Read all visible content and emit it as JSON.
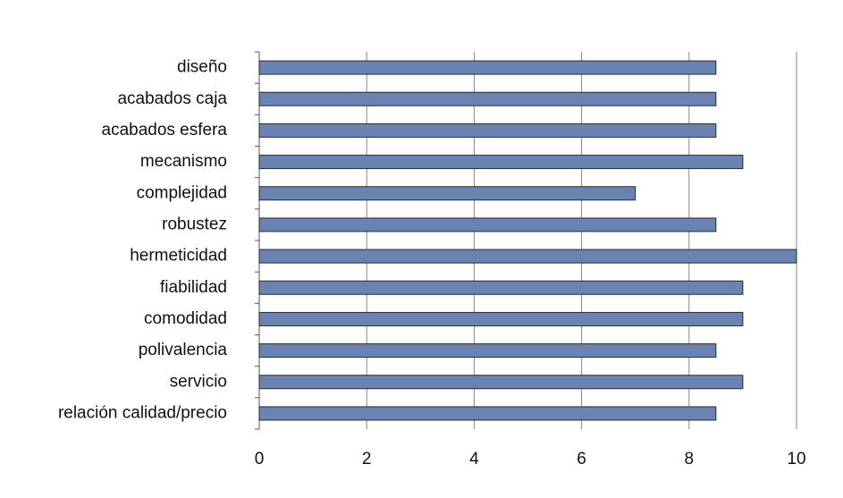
{
  "chart_data": {
    "type": "bar",
    "orientation": "horizontal",
    "categories": [
      "diseño",
      "acabados caja",
      "acabados esfera",
      "mecanismo",
      "complejidad",
      "robustez",
      "hermeticidad",
      "fiabilidad",
      "comodidad",
      "polivalencia",
      "servicio",
      "relación calidad/precio"
    ],
    "values": [
      8.5,
      8.5,
      8.5,
      9,
      7,
      8.5,
      10,
      9,
      9,
      8.5,
      9,
      8.5
    ],
    "color": "#6b83b3",
    "xlim": [
      0,
      10
    ],
    "xticks": [
      0,
      2,
      4,
      6,
      8,
      10
    ],
    "grid": true
  }
}
